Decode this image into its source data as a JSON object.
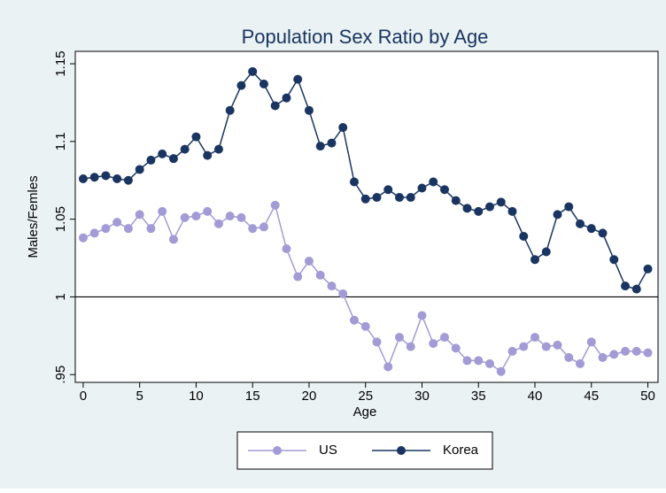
{
  "chart_data": {
    "type": "line",
    "title": "Population Sex Ratio by Age",
    "x_label": "Age",
    "y_label": "Males/Femles",
    "x": [
      0,
      1,
      2,
      3,
      4,
      5,
      6,
      7,
      8,
      9,
      10,
      11,
      12,
      13,
      14,
      15,
      16,
      17,
      18,
      19,
      20,
      21,
      22,
      23,
      24,
      25,
      26,
      27,
      28,
      29,
      30,
      31,
      32,
      33,
      34,
      35,
      36,
      37,
      38,
      39,
      40,
      41,
      42,
      43,
      44,
      45,
      46,
      47,
      48,
      49,
      50
    ],
    "series": [
      {
        "name": "US",
        "color": "#a29bd6",
        "values": [
          1.038,
          1.041,
          1.044,
          1.048,
          1.044,
          1.053,
          1.044,
          1.055,
          1.037,
          1.051,
          1.052,
          1.055,
          1.047,
          1.052,
          1.051,
          1.044,
          1.045,
          1.059,
          1.031,
          1.013,
          1.023,
          1.014,
          1.007,
          1.002,
          0.985,
          0.981,
          0.971,
          0.955,
          0.974,
          0.968,
          0.988,
          0.97,
          0.974,
          0.967,
          0.959,
          0.959,
          0.957,
          0.952,
          0.965,
          0.968,
          0.974,
          0.968,
          0.969,
          0.961,
          0.957,
          0.971,
          0.961,
          0.963,
          0.965,
          0.965,
          0.964
        ]
      },
      {
        "name": "Korea",
        "color": "#1a3561",
        "values": [
          1.076,
          1.077,
          1.078,
          1.076,
          1.075,
          1.082,
          1.088,
          1.092,
          1.089,
          1.095,
          1.103,
          1.091,
          1.095,
          1.12,
          1.136,
          1.145,
          1.137,
          1.123,
          1.128,
          1.14,
          1.12,
          1.097,
          1.099,
          1.109,
          1.074,
          1.063,
          1.064,
          1.069,
          1.064,
          1.064,
          1.07,
          1.074,
          1.069,
          1.062,
          1.057,
          1.055,
          1.058,
          1.061,
          1.055,
          1.039,
          1.024,
          1.029,
          1.053,
          1.058,
          1.047,
          1.044,
          1.041,
          1.024,
          1.007,
          1.005,
          1.018
        ]
      }
    ],
    "xlim": [
      -0.7,
      50.9
    ],
    "ylim": [
      0.945,
      1.158
    ],
    "xticks": [
      0,
      5,
      10,
      15,
      20,
      25,
      30,
      35,
      40,
      45,
      50
    ],
    "yticks": [
      {
        "value": 0.95,
        "label": ".95"
      },
      1,
      1.05,
      1.1,
      1.15
    ],
    "reference_line": 1,
    "legend": "bottom"
  }
}
